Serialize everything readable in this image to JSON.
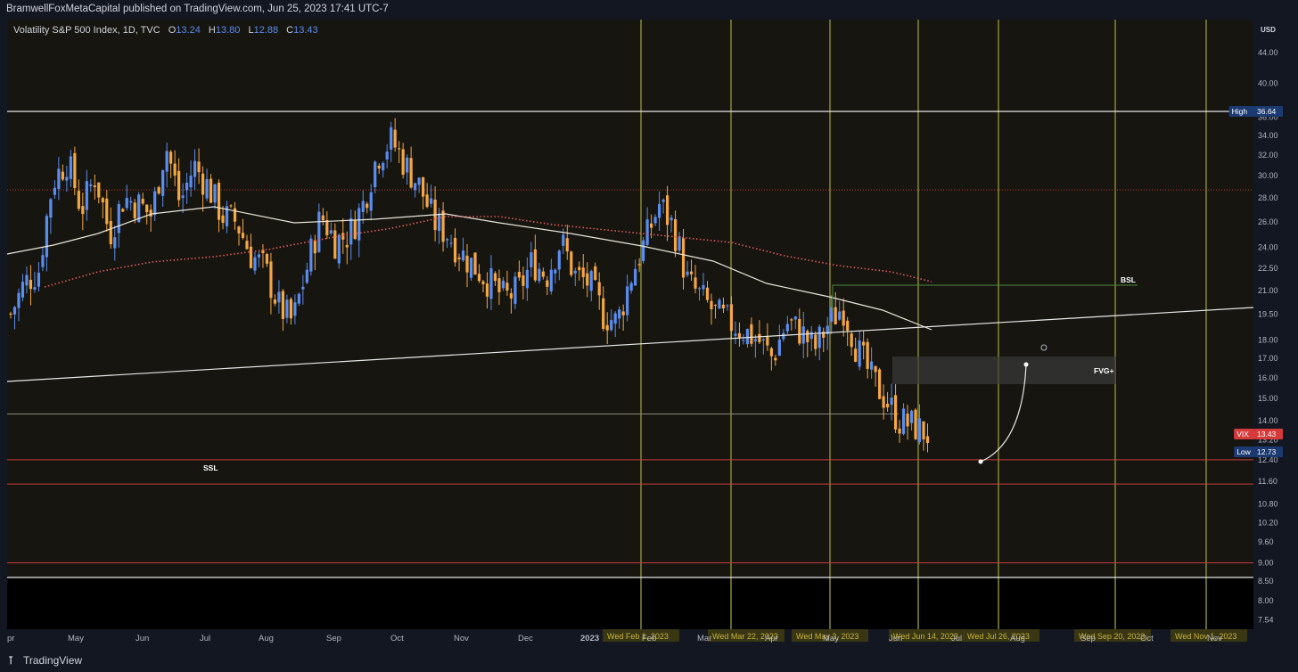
{
  "header": {
    "published_text": "BramwellFoxMetaCapital published on TradingView.com, Jun 25, 2023 17:41 UTC-7"
  },
  "legend": {
    "symbol": "Volatility S&P 500 Index, 1D, TVC",
    "o_label": "O",
    "o": "13.24",
    "h_label": "H",
    "h": "13.80",
    "l_label": "L",
    "l": "12.88",
    "c_label": "C",
    "c": "13.43"
  },
  "footer": {
    "logo_icon": "tradingview-logo-icon",
    "brand": "TradingView"
  },
  "colors": {
    "background": "#131722",
    "chart_bg": "#161510",
    "up": "#5b8def",
    "down": "#f5a742",
    "vline": "#7a7a2e",
    "red_level": "#c83c3c"
  },
  "chart_data": {
    "type": "line",
    "title": "",
    "price_unit": "USD",
    "y_scale": "log",
    "ylim": [
      7.3,
      48.5
    ],
    "y_ticks": [
      "44.00",
      "40.00",
      "36.00",
      "34.00",
      "32.00",
      "30.00",
      "28.00",
      "26.00",
      "24.00",
      "22.50",
      "21.00",
      "19.50",
      "18.00",
      "17.00",
      "16.00",
      "15.00",
      "14.00",
      "13.20",
      "12.40",
      "11.60",
      "10.80",
      "10.20",
      "9.60",
      "9.00",
      "8.50",
      "8.00",
      "7.54"
    ],
    "x_ticks": [
      "pr",
      "May",
      "Jun",
      "Jul",
      "Aug",
      "Sep",
      "Oct",
      "Nov",
      "Dec",
      "2023",
      "Feb",
      "Mar",
      "Apr",
      "May",
      "Jun",
      "Jul",
      "Aug",
      "Sep",
      "Oct",
      "Nov"
    ],
    "date_labels": [
      "Wed Feb 1, 2023",
      "Wed Mar 22, 2023",
      "Wed May 3, 2023",
      "Wed Jun 14, 2023",
      "Wed Jul 26, 2023",
      "Wed Sep 20, 2023",
      "Wed Nov 1, 2023"
    ],
    "price_labels": [
      {
        "name": "High",
        "value": "36.64",
        "color": "#1c3a72"
      },
      {
        "name": "VIX",
        "value": "13.43",
        "color": "#d63a3a"
      },
      {
        "name": "Low",
        "value": "12.73",
        "color": "#1c3a72"
      }
    ],
    "annotations": [
      "BSL",
      "FVG+",
      "SSL"
    ],
    "horizontal_levels": [
      36.64,
      28.7,
      14.3,
      12.4,
      11.5,
      9.0,
      8.6
    ],
    "series": [
      {
        "name": "",
        "values_sampled": [
          19.5,
          21.5,
          22.4,
          29.5,
          31.5,
          27.0,
          30.0,
          25.0,
          28.0,
          27.5,
          26.5,
          33.0,
          27.5,
          31.0,
          29.0,
          26.5,
          26.0,
          23.5,
          22.5,
          20.0,
          19.0,
          22.5,
          26.5,
          24.5,
          25.0,
          27.5,
          32.0,
          33.5,
          31.0,
          29.0,
          26.0,
          25.0,
          23.5,
          22.5,
          21.5,
          20.5,
          21.0,
          23.0,
          22.0,
          24.5,
          22.0,
          21.5,
          19.5,
          19.0,
          22.0,
          24.5,
          27.5,
          25.5,
          21.5,
          20.5,
          19.5,
          19.0,
          18.5,
          18.0,
          17.0,
          19.0,
          18.5,
          17.5,
          19.0,
          20.0,
          17.5,
          16.0,
          15.0,
          14.0,
          13.8,
          13.4
        ]
      }
    ]
  }
}
